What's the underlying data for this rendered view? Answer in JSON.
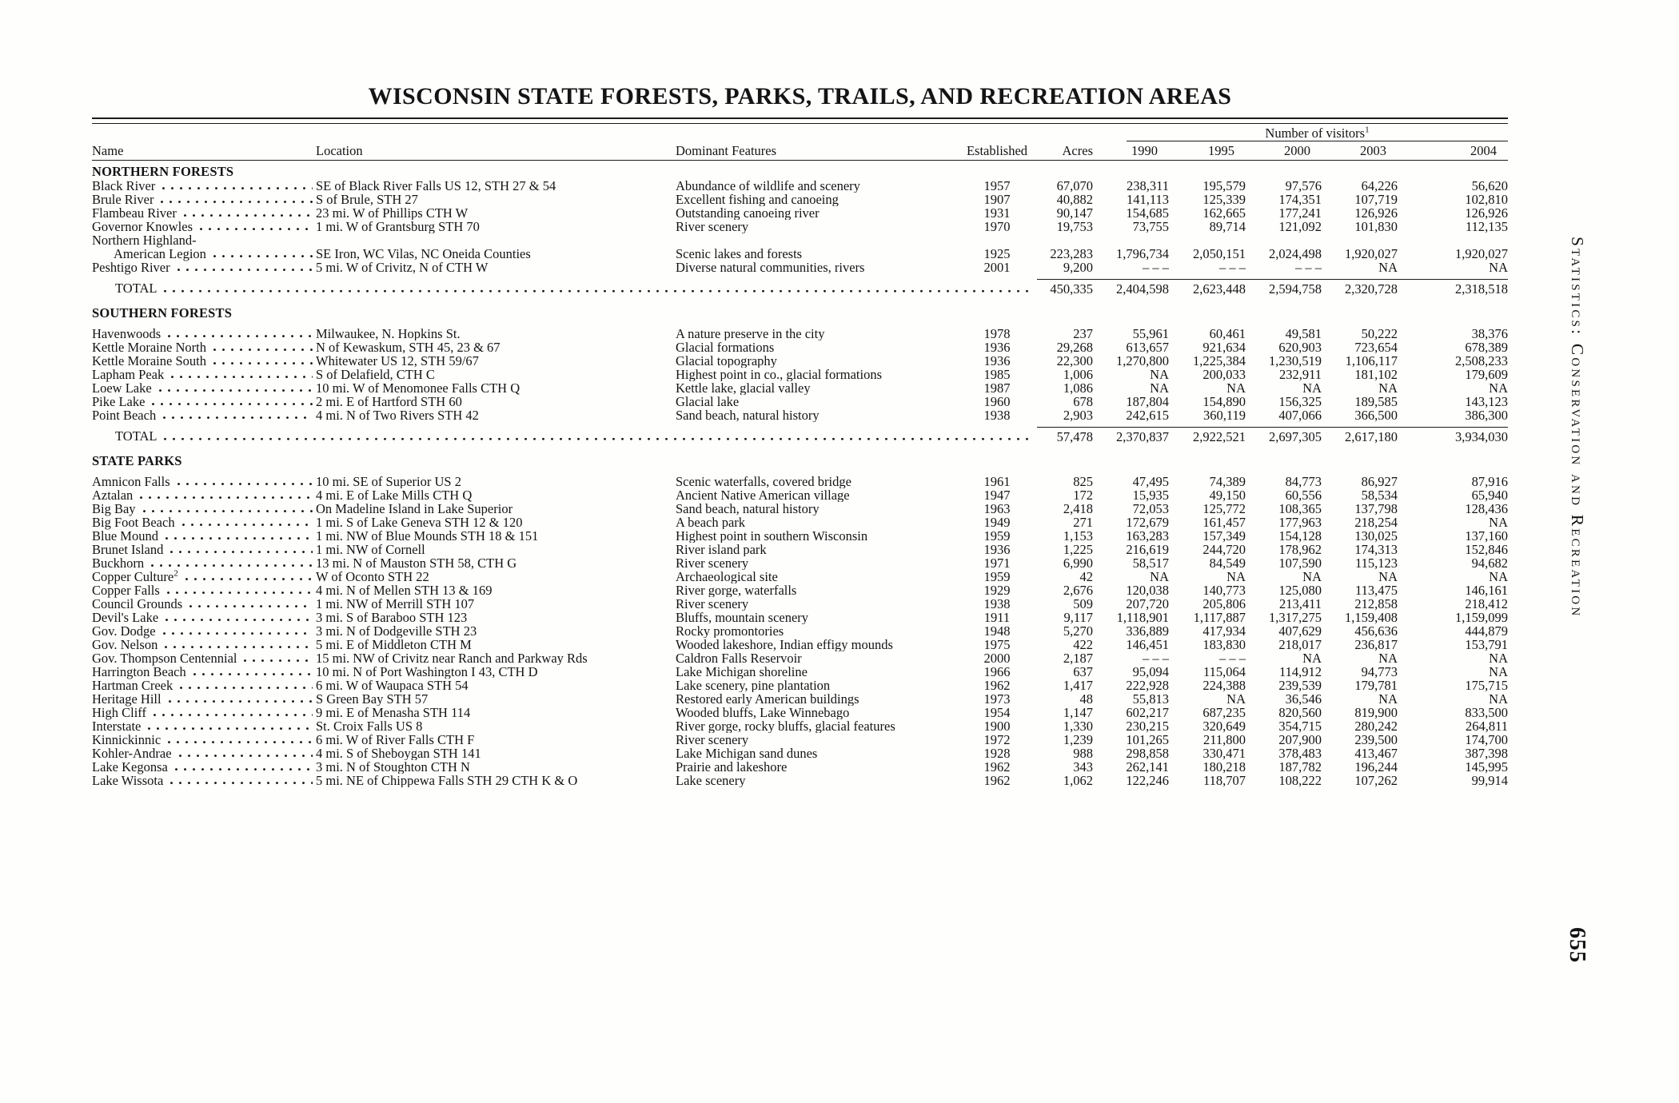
{
  "page": {
    "title": "WISCONSIN STATE FORESTS, PARKS, TRAILS, AND RECREATION AREAS",
    "visitors_label": "Number of visitors",
    "visitors_note": "1",
    "side_label": "Statistics: Conservation and Recreation",
    "page_number": "655"
  },
  "colors": {
    "ink": "#141414",
    "paper": "#fefefd"
  },
  "table": {
    "columns": [
      "Name",
      "Location",
      "Dominant Features",
      "Established",
      "Acres",
      "1990",
      "1995",
      "2000",
      "2003",
      "2004"
    ],
    "sections": [
      {
        "header": "NORTHERN FORESTS",
        "gap_after_header": false,
        "rows": [
          {
            "name": "Black River",
            "location": "SE of Black River Falls US 12, STH 27 & 54",
            "features": "Abundance of wildlife and scenery",
            "established": "1957",
            "acres": "67,070",
            "visitors": [
              "238,311",
              "195,579",
              "97,576",
              "64,226",
              "56,620"
            ]
          },
          {
            "name": "Brule River",
            "location": "S of Brule, STH 27",
            "features": "Excellent fishing and canoeing",
            "established": "1907",
            "acres": "40,882",
            "visitors": [
              "141,113",
              "125,339",
              "174,351",
              "107,719",
              "102,810"
            ]
          },
          {
            "name": "Flambeau River",
            "location": "23 mi. W of Phillips CTH W",
            "features": "Outstanding canoeing river",
            "established": "1931",
            "acres": "90,147",
            "visitors": [
              "154,685",
              "162,665",
              "177,241",
              "126,926",
              "126,926"
            ]
          },
          {
            "name": "Governor Knowles",
            "location": "1 mi. W of Grantsburg STH 70",
            "features": "River scenery",
            "established": "1970",
            "acres": "19,753",
            "visitors": [
              "73,755",
              "89,714",
              "121,092",
              "101,830",
              "112,135"
            ]
          },
          {
            "name": "Northern Highland-",
            "continuation": true
          },
          {
            "name": "American Legion",
            "indent": true,
            "location": "SE Iron, WC Vilas, NC Oneida Counties",
            "features": "Scenic lakes and forests",
            "established": "1925",
            "acres": "223,283",
            "visitors": [
              "1,796,734",
              "2,050,151",
              "2,024,498",
              "1,920,027",
              "1,920,027"
            ]
          },
          {
            "name": "Peshtigo River",
            "location": "5 mi. W of Crivitz, N of CTH W",
            "features": "Diverse natural communities, rivers",
            "established": "2001",
            "acres": "9,200",
            "visitors": [
              "– – –",
              "– – –",
              "– – –",
              "NA",
              "NA"
            ]
          }
        ],
        "total": {
          "label": "TOTAL",
          "acres": "450,335",
          "visitors": [
            "2,404,598",
            "2,623,448",
            "2,594,758",
            "2,320,728",
            "2,318,518"
          ]
        }
      },
      {
        "header": "SOUTHERN FORESTS",
        "gap_after_header": true,
        "rows": [
          {
            "name": "Havenwoods",
            "location": "Milwaukee, N. Hopkins St.",
            "features": "A nature preserve in the city",
            "established": "1978",
            "acres": "237",
            "visitors": [
              "55,961",
              "60,461",
              "49,581",
              "50,222",
              "38,376"
            ]
          },
          {
            "name": "Kettle Moraine North",
            "location": "N of Kewaskum, STH 45, 23 & 67",
            "features": "Glacial formations",
            "established": "1936",
            "acres": "29,268",
            "visitors": [
              "613,657",
              "921,634",
              "620,903",
              "723,654",
              "678,389"
            ]
          },
          {
            "name": "Kettle Moraine South",
            "location": "Whitewater US 12, STH 59/67",
            "features": "Glacial topography",
            "established": "1936",
            "acres": "22,300",
            "visitors": [
              "1,270,800",
              "1,225,384",
              "1,230,519",
              "1,106,117",
              "2,508,233"
            ]
          },
          {
            "name": "Lapham Peak",
            "location": "S of Delafield, CTH C",
            "features": "Highest point in co., glacial formations",
            "established": "1985",
            "acres": "1,006",
            "visitors": [
              "NA",
              "200,033",
              "232,911",
              "181,102",
              "179,609"
            ]
          },
          {
            "name": "Loew Lake",
            "location": "10 mi. W of Menomonee Falls CTH Q",
            "features": "Kettle lake, glacial valley",
            "established": "1987",
            "acres": "1,086",
            "visitors": [
              "NA",
              "NA",
              "NA",
              "NA",
              "NA"
            ]
          },
          {
            "name": "Pike Lake",
            "location": "2 mi. E of Hartford STH 60",
            "features": "Glacial lake",
            "established": "1960",
            "acres": "678",
            "visitors": [
              "187,804",
              "154,890",
              "156,325",
              "189,585",
              "143,123"
            ]
          },
          {
            "name": "Point Beach",
            "location": "4 mi. N of Two Rivers STH 42",
            "features": "Sand beach, natural history",
            "established": "1938",
            "acres": "2,903",
            "visitors": [
              "242,615",
              "360,119",
              "407,066",
              "366,500",
              "386,300"
            ]
          }
        ],
        "total": {
          "label": "TOTAL",
          "acres": "57,478",
          "visitors": [
            "2,370,837",
            "2,922,521",
            "2,697,305",
            "2,617,180",
            "3,934,030"
          ]
        }
      },
      {
        "header": "STATE PARKS",
        "gap_after_header": true,
        "rows": [
          {
            "name": "Amnicon Falls",
            "location": "10 mi. SE of Superior US 2",
            "features": "Scenic waterfalls, covered bridge",
            "established": "1961",
            "acres": "825",
            "visitors": [
              "47,495",
              "74,389",
              "84,773",
              "86,927",
              "87,916"
            ]
          },
          {
            "name": "Aztalan",
            "location": "4 mi. E of Lake Mills CTH Q",
            "features": "Ancient Native American village",
            "established": "1947",
            "acres": "172",
            "visitors": [
              "15,935",
              "49,150",
              "60,556",
              "58,534",
              "65,940"
            ]
          },
          {
            "name": "Big Bay",
            "location": "On Madeline Island in Lake Superior",
            "features": "Sand beach, natural history",
            "established": "1963",
            "acres": "2,418",
            "visitors": [
              "72,053",
              "125,772",
              "108,365",
              "137,798",
              "128,436"
            ]
          },
          {
            "name": "Big Foot Beach",
            "location": "1 mi. S of Lake Geneva STH 12 & 120",
            "features": "A beach park",
            "established": "1949",
            "acres": "271",
            "visitors": [
              "172,679",
              "161,457",
              "177,963",
              "218,254",
              "NA"
            ]
          },
          {
            "name": "Blue Mound",
            "location": "1 mi. NW of Blue Mounds STH 18 & 151",
            "features": "Highest point in southern Wisconsin",
            "established": "1959",
            "acres": "1,153",
            "visitors": [
              "163,283",
              "157,349",
              "154,128",
              "130,025",
              "137,160"
            ]
          },
          {
            "name": "Brunet Island",
            "location": "1 mi. NW of Cornell",
            "features": "River island park",
            "established": "1936",
            "acres": "1,225",
            "visitors": [
              "216,619",
              "244,720",
              "178,962",
              "174,313",
              "152,846"
            ]
          },
          {
            "name": "Buckhorn",
            "location": "13 mi. N of Mauston STH 58, CTH G",
            "features": "River scenery",
            "established": "1971",
            "acres": "6,990",
            "visitors": [
              "58,517",
              "84,549",
              "107,590",
              "115,123",
              "94,682"
            ]
          },
          {
            "name": "Copper Culture",
            "name_sup": "2",
            "location": "W of Oconto STH 22",
            "features": "Archaeological site",
            "established": "1959",
            "acres": "42",
            "visitors": [
              "NA",
              "NA",
              "NA",
              "NA",
              "NA"
            ]
          },
          {
            "name": "Copper Falls",
            "location": "4 mi. N of Mellen STH 13 & 169",
            "features": "River gorge, waterfalls",
            "established": "1929",
            "acres": "2,676",
            "visitors": [
              "120,038",
              "140,773",
              "125,080",
              "113,475",
              "146,161"
            ]
          },
          {
            "name": "Council Grounds",
            "location": "1 mi. NW of Merrill STH 107",
            "features": "River scenery",
            "established": "1938",
            "acres": "509",
            "visitors": [
              "207,720",
              "205,806",
              "213,411",
              "212,858",
              "218,412"
            ]
          },
          {
            "name": "Devil's Lake",
            "location": "3 mi. S of Baraboo STH 123",
            "features": "Bluffs, mountain scenery",
            "established": "1911",
            "acres": "9,117",
            "visitors": [
              "1,118,901",
              "1,117,887",
              "1,317,275",
              "1,159,408",
              "1,159,099"
            ]
          },
          {
            "name": "Gov. Dodge",
            "location": "3 mi. N of Dodgeville STH 23",
            "features": "Rocky promontories",
            "established": "1948",
            "acres": "5,270",
            "visitors": [
              "336,889",
              "417,934",
              "407,629",
              "456,636",
              "444,879"
            ]
          },
          {
            "name": "Gov. Nelson",
            "location": "5 mi. E of Middleton CTH M",
            "features": "Wooded lakeshore, Indian effigy mounds",
            "established": "1975",
            "acres": "422",
            "visitors": [
              "146,451",
              "183,830",
              "218,017",
              "236,817",
              "153,791"
            ]
          },
          {
            "name": "Gov. Thompson Centennial",
            "location": "15 mi. NW of Crivitz near Ranch and Parkway Rds",
            "features": "Caldron Falls Reservoir",
            "established": "2000",
            "acres": "2,187",
            "visitors": [
              "– – –",
              "– – –",
              "NA",
              "NA",
              "NA"
            ]
          },
          {
            "name": "Harrington Beach",
            "location": "10 mi. N of Port Washington I 43, CTH D",
            "features": "Lake Michigan shoreline",
            "established": "1966",
            "acres": "637",
            "visitors": [
              "95,094",
              "115,064",
              "114,912",
              "94,773",
              "NA"
            ]
          },
          {
            "name": "Hartman Creek",
            "location": "6 mi. W of Waupaca STH 54",
            "features": "Lake scenery, pine plantation",
            "established": "1962",
            "acres": "1,417",
            "visitors": [
              "222,928",
              "224,388",
              "239,539",
              "179,781",
              "175,715"
            ]
          },
          {
            "name": "Heritage Hill",
            "location": "S Green Bay STH 57",
            "features": "Restored early American buildings",
            "established": "1973",
            "acres": "48",
            "visitors": [
              "55,813",
              "NA",
              "36,546",
              "NA",
              "NA"
            ]
          },
          {
            "name": "High Cliff",
            "location": "9 mi. E of Menasha STH 114",
            "features": "Wooded bluffs, Lake Winnebago",
            "established": "1954",
            "acres": "1,147",
            "visitors": [
              "602,217",
              "687,235",
              "820,560",
              "819,900",
              "833,500"
            ]
          },
          {
            "name": "Interstate",
            "location": "St. Croix Falls US 8",
            "features": "River gorge, rocky bluffs, glacial features",
            "established": "1900",
            "acres": "1,330",
            "visitors": [
              "230,215",
              "320,649",
              "354,715",
              "280,242",
              "264,811"
            ]
          },
          {
            "name": "Kinnickinnic",
            "location": "6 mi. W of River Falls CTH F",
            "features": "River scenery",
            "established": "1972",
            "acres": "1,239",
            "visitors": [
              "101,265",
              "211,800",
              "207,900",
              "239,500",
              "174,700"
            ]
          },
          {
            "name": "Kohler-Andrae",
            "location": "4 mi. S of Sheboygan STH 141",
            "features": "Lake Michigan sand dunes",
            "established": "1928",
            "acres": "988",
            "visitors": [
              "298,858",
              "330,471",
              "378,483",
              "413,467",
              "387,398"
            ]
          },
          {
            "name": "Lake Kegonsa",
            "location": "3 mi. N of Stoughton CTH N",
            "features": "Prairie and lakeshore",
            "established": "1962",
            "acres": "343",
            "visitors": [
              "262,141",
              "180,218",
              "187,782",
              "196,244",
              "145,995"
            ]
          },
          {
            "name": "Lake Wissota",
            "location": "5 mi. NE of Chippewa Falls STH 29 CTH K & O",
            "features": "Lake scenery",
            "established": "1962",
            "acres": "1,062",
            "visitors": [
              "122,246",
              "118,707",
              "108,222",
              "107,262",
              "99,914"
            ]
          }
        ]
      }
    ]
  }
}
